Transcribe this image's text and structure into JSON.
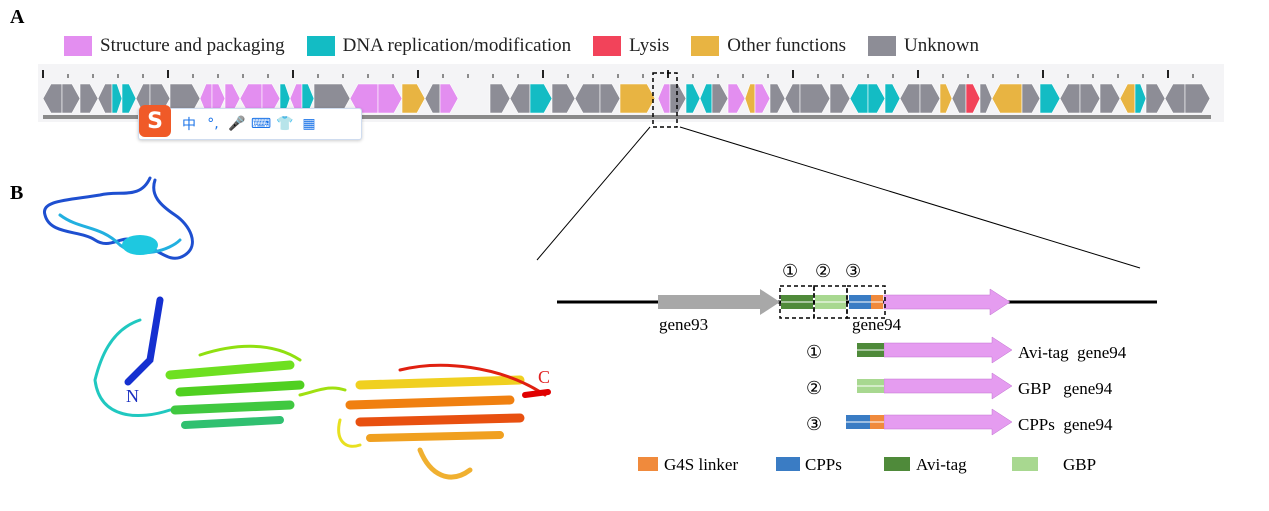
{
  "panels": {
    "a": "A",
    "b": "B"
  },
  "legend": [
    {
      "label": "Structure and packaging",
      "color": "#e38ef0"
    },
    {
      "label": "DNA replication/modification",
      "color": "#13bcc4"
    },
    {
      "label": "Lysis",
      "color": "#f2435a"
    },
    {
      "label": "Other functions",
      "color": "#e8b442"
    },
    {
      "label": "Unknown",
      "color": "#8d8d96"
    }
  ],
  "ime": {
    "logo": "S",
    "items": [
      "中",
      "°,",
      "🎤",
      "⌨",
      "👕",
      "▦"
    ]
  },
  "structure": {
    "n_label": "N",
    "c_label": "C"
  },
  "construct": {
    "markers": [
      "①",
      "②",
      "③"
    ],
    "gene_left": "gene93",
    "gene_right": "gene94",
    "variants": [
      {
        "marker": "①",
        "label": "Avi-tag  gene94"
      },
      {
        "marker": "②",
        "label": "GBP   gene94"
      },
      {
        "marker": "③",
        "label": "CPPs  gene94"
      }
    ]
  },
  "tag_legend": [
    {
      "label": "G4S linker",
      "color": "#f08a3c"
    },
    {
      "label": "CPPs",
      "color": "#3a7cc4"
    },
    {
      "label": "Avi-tag",
      "color": "#4f8a3a"
    },
    {
      "label": "GBP",
      "color": "#a8d890"
    }
  ]
}
